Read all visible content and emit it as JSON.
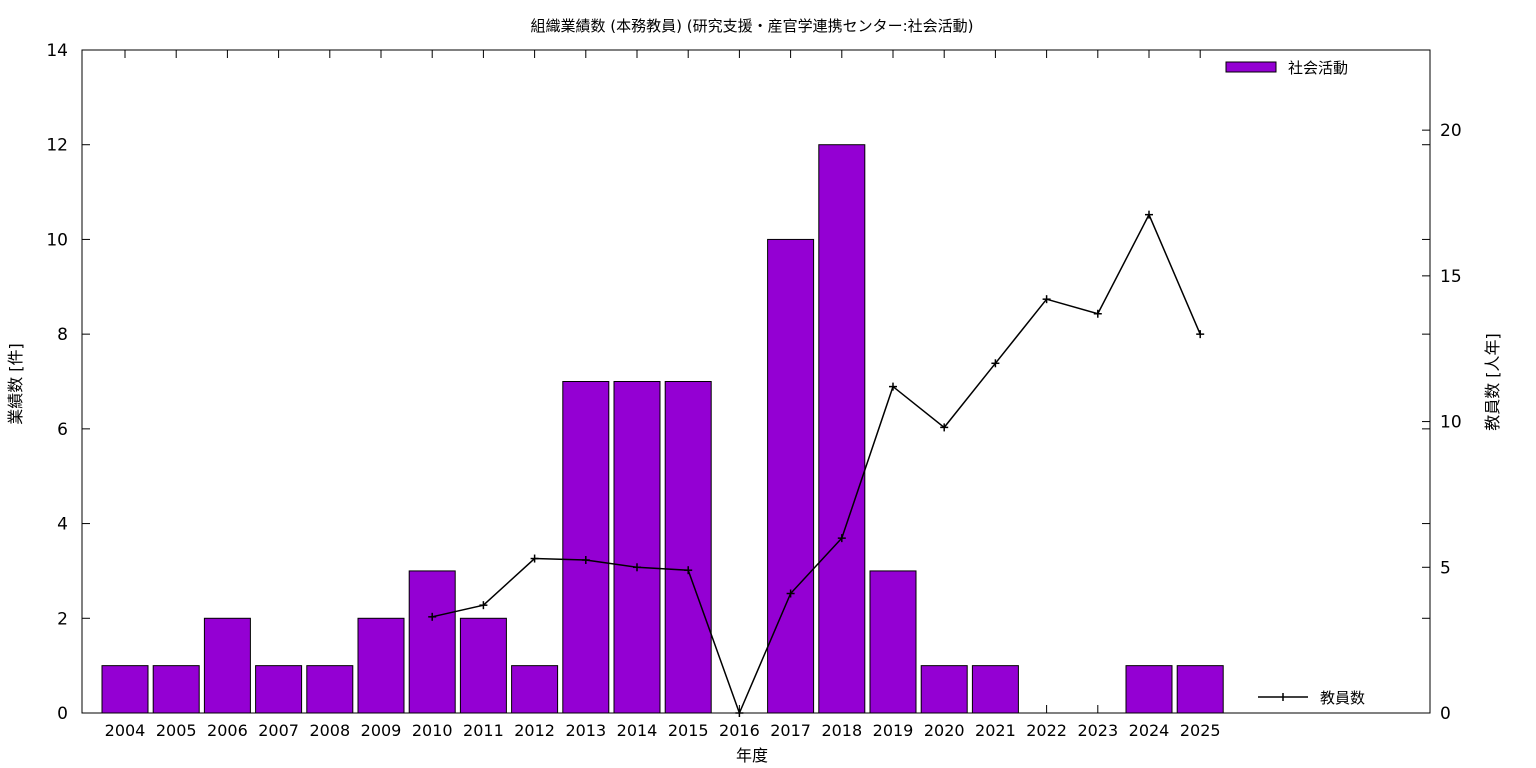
{
  "chart_data": {
    "type": "bar",
    "title": "組織業績数 (本務教員) (研究支援・産官学連携センター:社会活動)",
    "xlabel": "年度",
    "ylabel": "業績数 [件]",
    "y2label": "教員数 [人年]",
    "categories": [
      "2004",
      "2005",
      "2006",
      "2007",
      "2008",
      "2009",
      "2010",
      "2011",
      "2012",
      "2013",
      "2014",
      "2015",
      "2016",
      "2017",
      "2018",
      "2019",
      "2020",
      "2021",
      "2022",
      "2023",
      "2024",
      "2025"
    ],
    "ylim": [
      0,
      14
    ],
    "y2lim": [
      0,
      22.75
    ],
    "yticks": [
      "0",
      "2",
      "4",
      "6",
      "8",
      "10",
      "12",
      "14"
    ],
    "y2ticks": [
      "0",
      "5",
      "10",
      "15",
      "20"
    ],
    "series": [
      {
        "name": "社会活動",
        "type": "bar",
        "axis": "left",
        "color": "#9400d3",
        "values": [
          1,
          1,
          2,
          1,
          1,
          2,
          3,
          2,
          1,
          7,
          7,
          7,
          0,
          10,
          12,
          3,
          1,
          1,
          0,
          0,
          1,
          1
        ]
      },
      {
        "name": "教員数",
        "type": "line",
        "axis": "right",
        "color": "#000000",
        "values": [
          null,
          null,
          null,
          null,
          null,
          null,
          3.3,
          3.7,
          5.3,
          5.25,
          5.0,
          4.9,
          0,
          4.1,
          6.0,
          11.2,
          9.8,
          12.0,
          14.2,
          13.7,
          17.1,
          13.0
        ]
      }
    ],
    "legend": {
      "position": "top-right / bottom-right"
    },
    "grid": false
  }
}
